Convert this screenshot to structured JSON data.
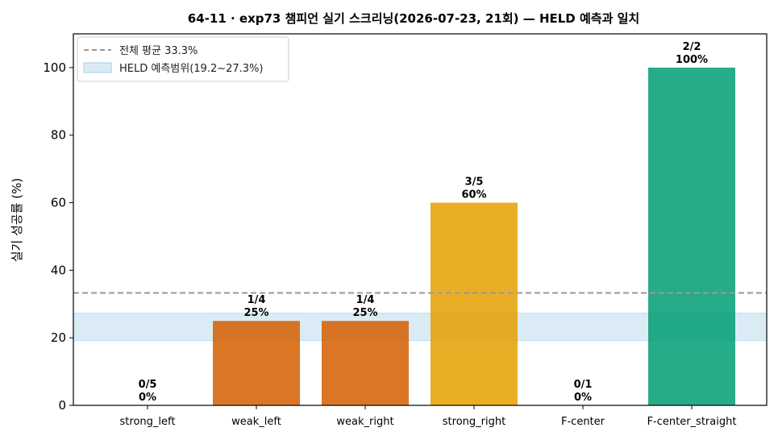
{
  "chart_data": {
    "type": "bar",
    "title": "64-11 · exp73 챔피언 실기 스크리닝(2026-07-23, 21회) — HELD 예측과 일치",
    "xlabel": "",
    "ylabel": "실기 성공률 (%)",
    "ylim": [
      0,
      110
    ],
    "yticks": [
      0,
      20,
      40,
      60,
      80,
      100
    ],
    "grid": false,
    "legend_position": "top-left",
    "categories": [
      "strong_left",
      "weak_left",
      "weak_right",
      "strong_right",
      "F-center",
      "F-center_straight"
    ],
    "values": [
      0,
      25,
      25,
      60,
      0,
      100
    ],
    "counts": [
      "0/5",
      "1/4",
      "1/4",
      "3/5",
      "0/1",
      "2/2"
    ],
    "value_labels": [
      "0%",
      "25%",
      "25%",
      "60%",
      "0%",
      "100%"
    ],
    "colors": [
      "#d55e00",
      "#d55e00",
      "#d55e00",
      "#e69f00",
      "#d55e00",
      "#009e73"
    ],
    "reference_line": {
      "label": "전체 평균 33.3%",
      "value": 33.3,
      "color": "#999999"
    },
    "band": {
      "label": "HELD 예측범위(19.2~27.3%)",
      "low": 19.2,
      "high": 27.3,
      "color": "#a6cde6"
    }
  }
}
